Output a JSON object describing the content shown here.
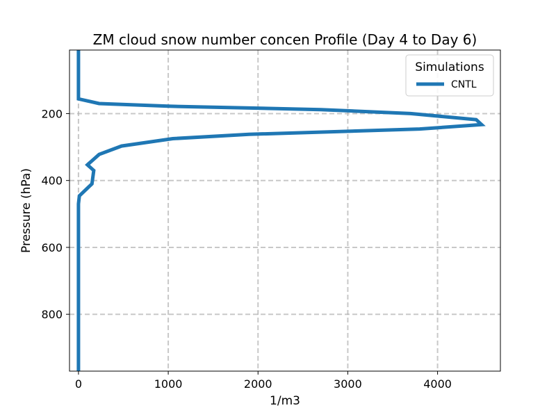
{
  "chart_data": {
    "type": "line",
    "title": "ZM cloud snow number concen Profile (Day 4 to Day 6)",
    "xlabel": "1/m3",
    "ylabel": "Pressure (hPa)",
    "xlim": [
      -100,
      4700
    ],
    "ylim": [
      970,
      10
    ],
    "y_inverted": true,
    "grid": true,
    "grid_style": "dashed",
    "x_ticks": [
      0,
      1000,
      2000,
      3000,
      4000
    ],
    "y_ticks": [
      200,
      400,
      600,
      800
    ],
    "legend": {
      "title": "Simulations",
      "placement": "top-right"
    },
    "series": [
      {
        "name": "CNTL",
        "color": "#1f77b4",
        "x": [
          0,
          0,
          0,
          0,
          0,
          230,
          1000,
          2700,
          3700,
          4430,
          4490,
          3800,
          1900,
          1050,
          480,
          230,
          100,
          170,
          150,
          10,
          0,
          0,
          0,
          0,
          0,
          0,
          0,
          0
        ],
        "y": [
          10,
          50,
          100,
          130,
          156,
          170,
          178,
          188,
          200,
          218,
          233,
          246,
          262,
          275,
          297,
          322,
          353,
          370,
          410,
          446,
          470,
          520,
          600,
          700,
          800,
          900,
          950,
          970
        ]
      }
    ]
  }
}
